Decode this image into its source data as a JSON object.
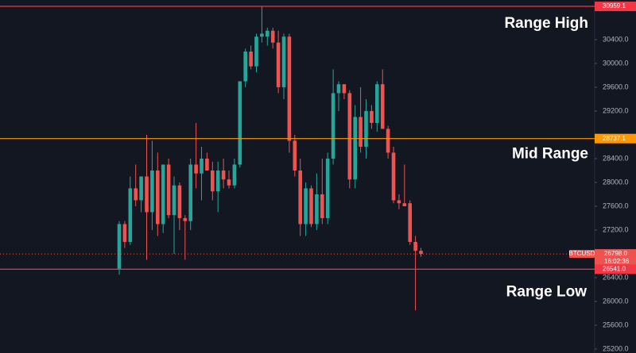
{
  "chart_data": {
    "type": "candlestick",
    "symbol": "BTCUSD",
    "last": 26798,
    "last_label": "26798.0",
    "countdown": "16:02:36",
    "up_color": "#26a69a",
    "down_color": "#ef5350",
    "ylim": [
      25133,
      31066
    ],
    "yticks": [
      {
        "value": 25200,
        "label": "25200.0"
      },
      {
        "value": 25600,
        "label": "25600.0"
      },
      {
        "value": 26000,
        "label": "26000.0"
      },
      {
        "value": 26400,
        "label": "26400.0"
      },
      {
        "value": 27200,
        "label": "27200.0"
      },
      {
        "value": 27600,
        "label": "27600.0"
      },
      {
        "value": 28000,
        "label": "28000.0"
      },
      {
        "value": 28400,
        "label": "28400.0"
      },
      {
        "value": 29200,
        "label": "29200.0"
      },
      {
        "value": 29600,
        "label": "29600.0"
      },
      {
        "value": 30000,
        "label": "30000.0"
      },
      {
        "value": 30400,
        "label": "30400.0"
      }
    ],
    "levels": [
      {
        "name": "Range High",
        "value": 30959.1,
        "value_label": "30959.1",
        "color": "#f23645"
      },
      {
        "name": "Mid Range",
        "value": 28737.1,
        "value_label": "28737.1",
        "color": "#ff9800"
      },
      {
        "name": "Range Low",
        "value": 26541,
        "value_label": "26541.0",
        "color": "#f23645"
      }
    ],
    "open": [
      26550,
      27300,
      27000,
      27900,
      27700,
      28100,
      27500,
      28200,
      27300,
      28300,
      27450,
      27950,
      27400,
      27350,
      28300,
      28150,
      28400,
      28200,
      27850,
      28200,
      28050,
      27950,
      28300,
      29700,
      30200,
      29950,
      30450,
      30450,
      30550,
      30350,
      29600,
      30450,
      28700,
      28200,
      27300,
      27900,
      27300,
      27800,
      27400,
      28400,
      29500,
      29650,
      29500,
      28050,
      29100,
      28600,
      29200,
      29000,
      29650,
      28900,
      28500,
      27700,
      27650,
      27650,
      27000,
      26850
    ],
    "high": [
      27350,
      27350,
      28100,
      28300,
      28100,
      28800,
      28700,
      28500,
      28300,
      28400,
      28100,
      28000,
      27450,
      28400,
      29000,
      28600,
      28500,
      28350,
      28350,
      28400,
      28200,
      28400,
      29700,
      30250,
      30300,
      30500,
      30960,
      30600,
      30600,
      30550,
      30500,
      30500,
      28800,
      28400,
      28000,
      27950,
      28150,
      28400,
      28500,
      29900,
      29700,
      29650,
      29550,
      29300,
      29600,
      29400,
      29300,
      29700,
      29900,
      28950,
      28600,
      27800,
      28300,
      27700,
      27100,
      26900
    ],
    "low": [
      26450,
      26900,
      26950,
      27600,
      27500,
      26700,
      27200,
      27100,
      27150,
      27400,
      26800,
      27200,
      26700,
      27200,
      27900,
      27700,
      28200,
      27700,
      27500,
      27900,
      27900,
      27900,
      28250,
      29600,
      29900,
      29850,
      30350,
      30300,
      30250,
      29500,
      29400,
      28500,
      28100,
      27100,
      27100,
      27250,
      27200,
      27300,
      27300,
      28300,
      29200,
      29400,
      27900,
      27900,
      28500,
      28400,
      28900,
      28850,
      28900,
      28400,
      27650,
      27550,
      27600,
      26950,
      25850,
      26750
    ],
    "close": [
      27300,
      27000,
      27900,
      27700,
      28100,
      27500,
      28200,
      27300,
      28300,
      27450,
      27950,
      27400,
      27350,
      28300,
      28150,
      28400,
      28200,
      27850,
      28200,
      28050,
      27950,
      28300,
      29700,
      30200,
      29950,
      30450,
      30500,
      30550,
      30350,
      29600,
      30450,
      28700,
      28200,
      27300,
      27900,
      27300,
      27800,
      27400,
      28400,
      29500,
      29650,
      29500,
      28050,
      29100,
      28600,
      29200,
      29000,
      29650,
      28900,
      28500,
      27700,
      27650,
      27600,
      27000,
      26850,
      26798
    ]
  }
}
